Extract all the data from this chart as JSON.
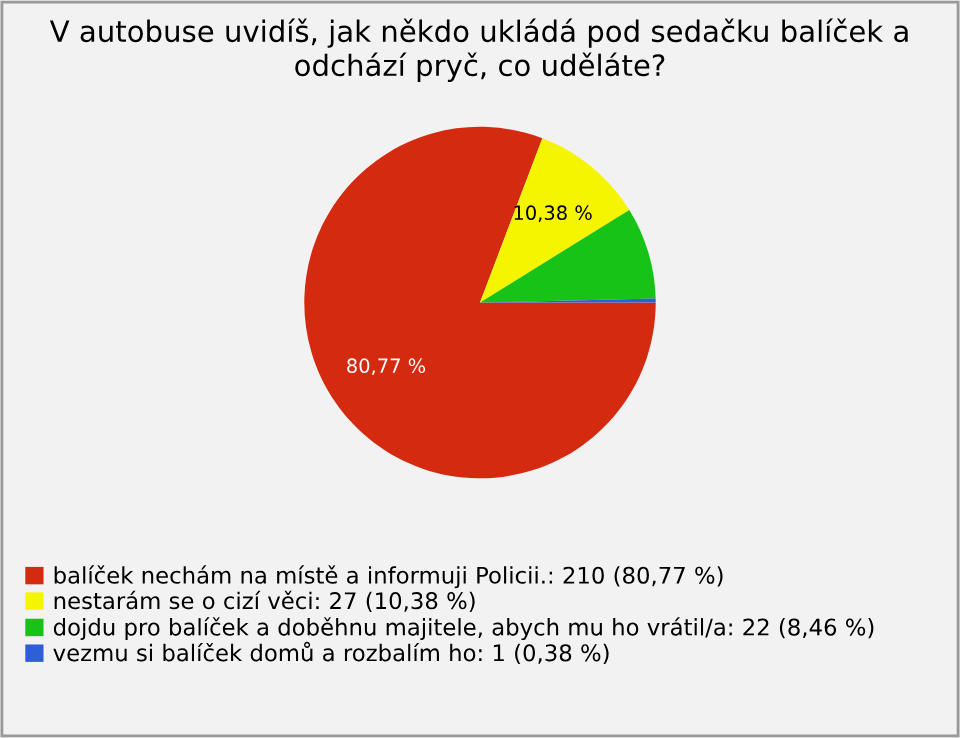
{
  "chart_data": {
    "type": "pie",
    "title": "V autobuse uvidíš, jak někdo ukládá pod sedačku balíček a odchází pryč, co uděláte?",
    "categories": [
      "balíček nechám na místě a informuji Policii.: 210 (80,77 %)",
      "nestarám se o cizí věci: 27 (10,38 %)",
      "dojdu pro balíček a doběhnu majitele, abych mu ho vrátil/a: 22 (8,46 %)",
      "vezmu si balíček domů a rozbalím ho: 1 (0,38 %)"
    ],
    "values": [
      80.77,
      10.38,
      8.46,
      0.38
    ],
    "colors": [
      "#d42a10",
      "#f5f500",
      "#17c317",
      "#2f5fd8"
    ],
    "value_labels": [
      "80,77 %",
      "10,38 %",
      null,
      null
    ],
    "legend": "bottom"
  }
}
